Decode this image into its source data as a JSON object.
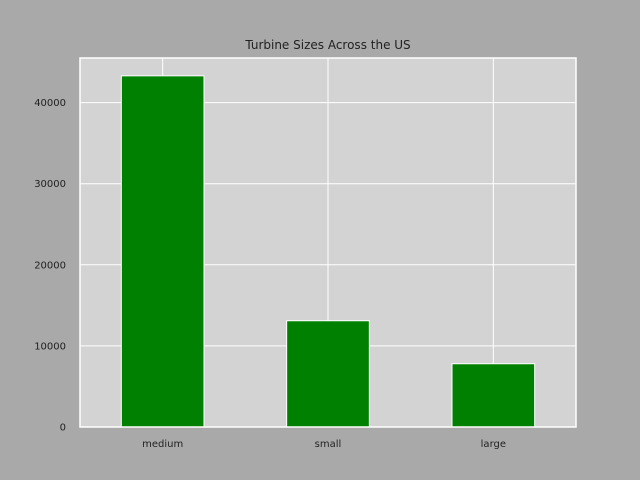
{
  "chart_data": {
    "type": "bar",
    "title": "Turbine Sizes Across the US",
    "xlabel": "",
    "ylabel": "",
    "categories": [
      "medium",
      "small",
      "large"
    ],
    "values": [
      43300,
      13100,
      7800
    ],
    "ylim": [
      0,
      45500
    ],
    "yticks": [
      0,
      10000,
      20000,
      30000,
      40000
    ],
    "grid": true,
    "legend": "none",
    "colors": {
      "figure_background": "#a9a9a9",
      "plot_background": "#d3d3d3",
      "bar": "#008000",
      "bar_edge": "#ffffff",
      "grid": "#ffffff",
      "text": "#222222"
    }
  }
}
